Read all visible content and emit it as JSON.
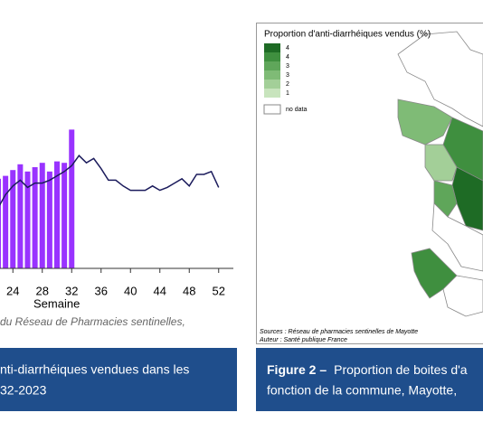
{
  "chart_data": {
    "type": "bar",
    "x": [
      22,
      23,
      24,
      25,
      26,
      27,
      28,
      29,
      30,
      31,
      32,
      33,
      34,
      35,
      36,
      37,
      38,
      39,
      40,
      41,
      42,
      43,
      44,
      45,
      46,
      47,
      48,
      49,
      50,
      51,
      52
    ],
    "xlabel": "Semaine",
    "xlim": [
      22,
      54
    ],
    "xticks": [
      24,
      28,
      32,
      36,
      40,
      44,
      48,
      52
    ],
    "ylim": [
      0,
      100
    ],
    "series": [
      {
        "type": "bar",
        "color": "#9933ff",
        "values": [
          62,
          64,
          68,
          72,
          67,
          70,
          73,
          67,
          74,
          73,
          96,
          null,
          null,
          null,
          null,
          null,
          null,
          null,
          null,
          null,
          null,
          null,
          null,
          null,
          null,
          null,
          null,
          null,
          null,
          null,
          null
        ]
      },
      {
        "type": "line",
        "color": "#1b1b5c",
        "values": [
          42,
          51,
          57,
          61,
          56,
          59,
          59,
          61,
          64,
          67,
          71,
          78,
          73,
          76,
          69,
          61,
          61,
          57,
          54,
          54,
          54,
          57,
          54,
          56,
          59,
          62,
          57,
          65,
          65,
          67,
          56
        ]
      }
    ]
  },
  "chart_note": "du Réseau de Pharmacies sentinelles,",
  "caption_left": {
    "lines": [
      "nti-diarrhéiques vendues dans les",
      "32-2023"
    ]
  },
  "map": {
    "legend_title": "Proportion d'anti-diarrhéiques vendus (%)",
    "legend": [
      {
        "label": "4",
        "color": "#1e6b25"
      },
      {
        "label": "4",
        "color": "#3f8f3f"
      },
      {
        "label": "3",
        "color": "#5fa65a"
      },
      {
        "label": "3",
        "color": "#7fbb76"
      },
      {
        "label": "2",
        "color": "#a3cf98"
      },
      {
        "label": "1",
        "color": "#c8e4bd"
      }
    ],
    "no_data": "no data",
    "sources": [
      "Sources : Réseau de pharmacies sentinelles de Mayotte",
      "Auteur : Santé publique France"
    ]
  },
  "caption_right": {
    "label": "Figure 2 –",
    "text": "Proportion de boites d'a",
    "line2": "fonction de la commune, Mayotte,"
  }
}
